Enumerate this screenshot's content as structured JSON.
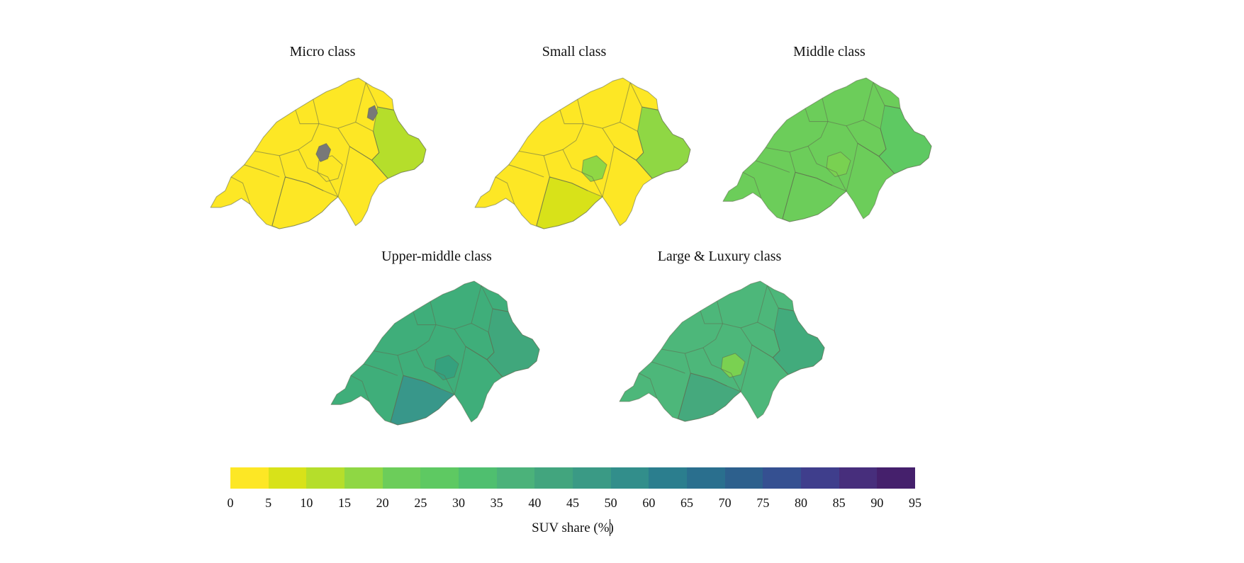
{
  "maps": [
    {
      "title": "Micro class",
      "fill": "#fde725",
      "east_fill": "#b5de2b",
      "mid_fill": "#fde725",
      "south_fill": "#fde725",
      "spots": [
        "#787878",
        "#787878"
      ]
    },
    {
      "title": "Small class",
      "fill": "#fde725",
      "east_fill": "#8fd744",
      "mid_fill": "#8fd744",
      "south_fill": "#d8e219",
      "spots": []
    },
    {
      "title": "Middle class",
      "fill": "#6ccd5a",
      "east_fill": "#5ec962",
      "mid_fill": "#79d151",
      "south_fill": "#6ccd5a",
      "spots": []
    },
    {
      "title": "Upper-middle class",
      "fill": "#3fae7a",
      "east_fill": "#40a77c",
      "mid_fill": "#35a17e",
      "south_fill": "#38978a",
      "spots": []
    },
    {
      "title": "Large & Luxury class",
      "fill": "#4db77a",
      "east_fill": "#42ab7c",
      "mid_fill": "#7ad151",
      "south_fill": "#45a97d",
      "spots": []
    }
  ],
  "legend": {
    "title": "SUV share (%)",
    "ticks": [
      "0",
      "5",
      "10",
      "15",
      "20",
      "25",
      "30",
      "35",
      "40",
      "45",
      "50",
      "60",
      "65",
      "70",
      "75",
      "80",
      "85",
      "90",
      "95"
    ],
    "colors": [
      "#fde725",
      "#d8e219",
      "#b5de2b",
      "#8fd744",
      "#6ccd5a",
      "#5ec962",
      "#4fbf6f",
      "#4bb27a",
      "#42a57e",
      "#3a9a85",
      "#328e8b",
      "#2b7e8e",
      "#2a6f8e",
      "#2d608d",
      "#355091",
      "#3f3e8c",
      "#472e7c",
      "#45206c"
    ]
  }
}
